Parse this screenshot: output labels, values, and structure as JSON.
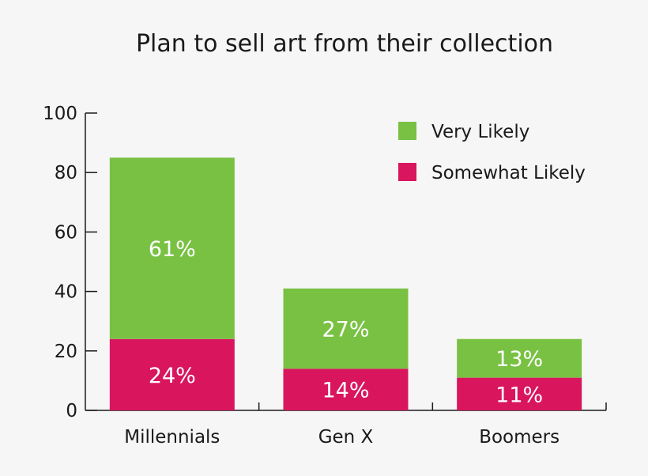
{
  "chart_data": {
    "type": "bar",
    "stacked": true,
    "title": "Plan to sell art from their collection",
    "xlabel": "",
    "ylabel": "",
    "categories": [
      "Millennials",
      "Gen X",
      "Boomers"
    ],
    "series": [
      {
        "name": "Somewhat Likely",
        "values": [
          24,
          14,
          11
        ],
        "labels": [
          "24%",
          "14%",
          "11%"
        ],
        "color": "#d9155e"
      },
      {
        "name": "Very Likely",
        "values": [
          61,
          27,
          13
        ],
        "labels": [
          "61%",
          "27%",
          "13%"
        ],
        "color": "#79c143"
      }
    ],
    "legend_order": [
      "Very Likely",
      "Somewhat Likely"
    ],
    "legend_position": "top-right",
    "ylim": [
      0,
      100
    ],
    "yticks": [
      0,
      20,
      40,
      60,
      80,
      100
    ],
    "grid": false
  }
}
